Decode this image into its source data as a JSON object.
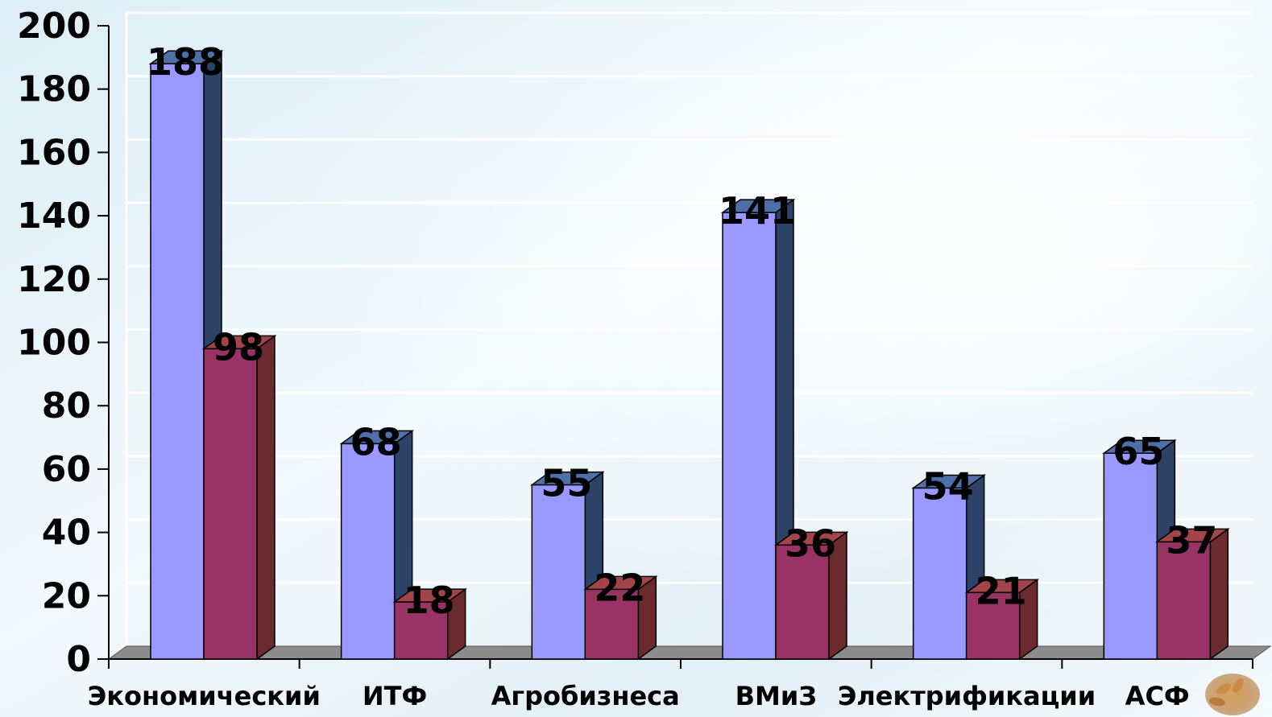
{
  "chart_data": {
    "type": "bar",
    "style": "3d-clustered-column",
    "categories": [
      "Экономический",
      "ИТФ",
      "Агробизнеса",
      "ВМиЗ",
      "Электрификации",
      "АСФ"
    ],
    "series": [
      {
        "values": [
          188,
          68,
          55,
          141,
          54,
          65
        ],
        "color": "#9999FF"
      },
      {
        "values": [
          98,
          18,
          22,
          36,
          21,
          37
        ],
        "color": "#993366"
      }
    ],
    "ylim": [
      0,
      200
    ],
    "yticks": [
      "0",
      "20",
      "40",
      "60",
      "80",
      "100",
      "120",
      "140",
      "160",
      "180",
      "200"
    ],
    "grid": true,
    "legend": "none",
    "data_labels": true,
    "title": "",
    "xlabel": "",
    "ylabel": ""
  },
  "colors": {
    "background_top": "#E6F2F8",
    "background_bottom": "#F6FAFC",
    "floor": "#8C8C8C",
    "gridline": "#FFFFFF",
    "series1_side": "#2C4266",
    "series2_side": "#6A2A2E"
  }
}
